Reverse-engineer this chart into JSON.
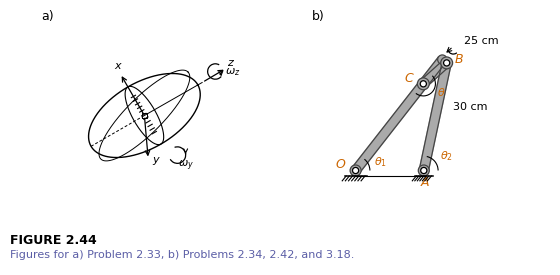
{
  "fig_width": 5.6,
  "fig_height": 2.75,
  "dpi": 100,
  "background_color": "#ffffff",
  "label_a": "a)",
  "label_b": "b)",
  "figure_title": "FIGURE 2.44",
  "figure_caption": "Figures for a) Problem 2.33, b) Problems 2.34, 2.42, and 3.18.",
  "title_color": "#000000",
  "caption_color": "#5b5ea6",
  "link_fill": "#aaaaaa",
  "link_edge": "#444444"
}
